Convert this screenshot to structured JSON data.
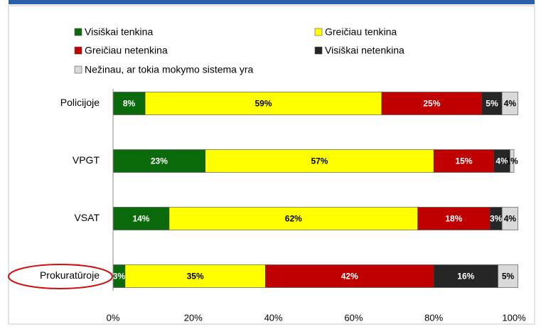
{
  "chart_data": {
    "type": "stacked_barh",
    "categories": [
      "Policijoje",
      "VPGT",
      "VSAT",
      "Prokuratūroje"
    ],
    "series": [
      {
        "name": "Visiškai tenkina",
        "color": "#0b6a0b",
        "values": [
          8,
          23,
          14,
          3
        ],
        "value_labels": [
          "8%",
          "23%",
          "14%",
          "3%"
        ]
      },
      {
        "name": "Greičiau tenkina",
        "color": "#ffff00",
        "values": [
          59,
          57,
          62,
          35
        ],
        "value_labels": [
          "59%",
          "57%",
          "62%",
          "35%"
        ]
      },
      {
        "name": "Greičiau netenkina",
        "color": "#c00000",
        "values": [
          25,
          15,
          18,
          42
        ],
        "value_labels": [
          "25%",
          "15%",
          "18%",
          "42%"
        ]
      },
      {
        "name": "Visiškai netenkina",
        "color": "#262626",
        "values": [
          5,
          4,
          3,
          16
        ],
        "value_labels": [
          "5%",
          "4%",
          "3%",
          "16%"
        ]
      },
      {
        "name": "Nežinau, ar tokia mokymo sistema yra",
        "color": "#d9d9d9",
        "values": [
          4,
          1,
          4,
          5
        ],
        "value_labels": [
          "4%",
          "1%",
          "4%",
          "5%"
        ]
      }
    ],
    "xlim": [
      0,
      100
    ],
    "xticks": [
      {
        "value": 0,
        "label": "0%"
      },
      {
        "value": 20,
        "label": "20%"
      },
      {
        "value": 40,
        "label": "40%"
      },
      {
        "value": 60,
        "label": "60%"
      },
      {
        "value": 80,
        "label": "80%"
      },
      {
        "value": 100,
        "label": "100%"
      }
    ],
    "grid": false
  }
}
